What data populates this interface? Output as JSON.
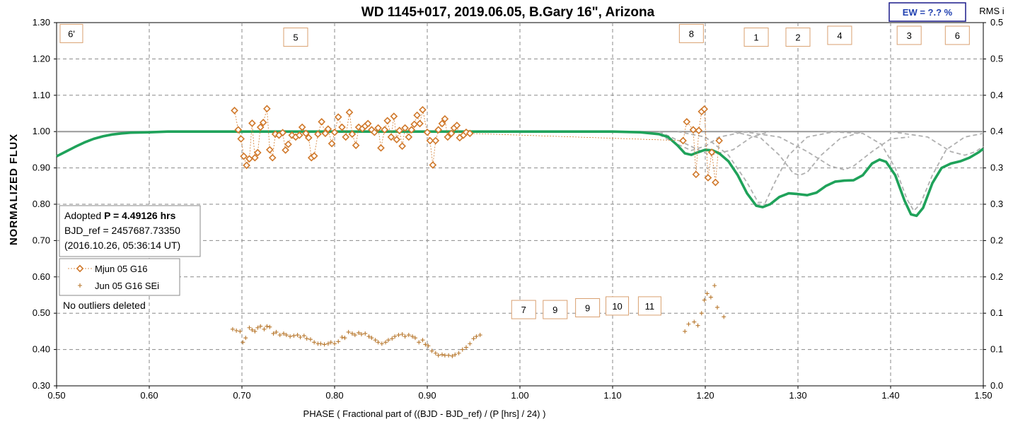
{
  "chart_data": {
    "type": "line",
    "title": "WD 1145+017, 2019.06.05, B.Gary 16\", Arizona",
    "xlabel": "PHASE ( Fractional part of ((BJD - BJD_ref) / (P [hrs] / 24) )",
    "ylabel": "NORMALIZED FLUX",
    "y2label": "RMS i",
    "xlim": [
      0.5,
      1.5
    ],
    "ylim": [
      0.3,
      1.3
    ],
    "y2lim": [
      0.0,
      0.5
    ],
    "x_ticks": [
      "0.50",
      "0.60",
      "0.70",
      "0.80",
      "0.90",
      "1.00",
      "1.10",
      "1.20",
      "1.30",
      "1.40",
      "1.50"
    ],
    "y_ticks": [
      "0.30",
      "0.40",
      "0.50",
      "0.60",
      "0.70",
      "0.80",
      "0.90",
      "1.00",
      "1.10",
      "1.20",
      "1.30"
    ],
    "y2_ticks": [
      "0.0",
      "0.1",
      "0.1",
      "0.2",
      "0.2",
      "0.3",
      "0.3",
      "0.4",
      "0.4",
      "0.5",
      "0.5"
    ],
    "grid": true,
    "ew_label": "EW =  ?.? %",
    "info": {
      "adopted_prefix": "Adopted ",
      "adopted_bold": "P = 4.49126 hrs",
      "bjd_ref": "BJD_ref = 2457687.73350",
      "date": "(2016.10.26, 05:36:14 UT)",
      "outliers": "No outliers deleted"
    },
    "legend": [
      {
        "name": "Mjun 05 G16",
        "color": "#d0782a",
        "marker": "diamond"
      },
      {
        "name": "Jun 05 G16 SEi",
        "color": "#b8782e",
        "marker": "plus"
      }
    ],
    "colors": {
      "model": "#1fa25a",
      "components": "#b0b0b0",
      "flux": "#d0782a",
      "rms": "#b8782e",
      "baseline": "#999999"
    },
    "dip_labels": [
      {
        "label": "6'",
        "x": 0.516,
        "y": 1.27
      },
      {
        "label": "5",
        "x": 0.758,
        "y": 1.26
      },
      {
        "label": "8",
        "x": 1.185,
        "y": 1.27
      },
      {
        "label": "1",
        "x": 1.255,
        "y": 1.26
      },
      {
        "label": "2",
        "x": 1.3,
        "y": 1.26
      },
      {
        "label": "4",
        "x": 1.345,
        "y": 1.265
      },
      {
        "label": "3",
        "x": 1.42,
        "y": 1.265
      },
      {
        "label": "6",
        "x": 1.472,
        "y": 1.265
      },
      {
        "label": "7",
        "x": 1.004,
        "y": 0.51
      },
      {
        "label": "9",
        "x": 1.038,
        "y": 0.51
      },
      {
        "label": "9",
        "x": 1.073,
        "y": 0.515
      },
      {
        "label": "10",
        "x": 1.105,
        "y": 0.52
      },
      {
        "label": "11",
        "x": 1.14,
        "y": 0.52
      }
    ],
    "model_curve": [
      [
        0.5,
        0.932
      ],
      [
        0.51,
        0.945
      ],
      [
        0.52,
        0.958
      ],
      [
        0.53,
        0.97
      ],
      [
        0.54,
        0.98
      ],
      [
        0.55,
        0.987
      ],
      [
        0.56,
        0.992
      ],
      [
        0.57,
        0.995
      ],
      [
        0.58,
        0.997
      ],
      [
        0.6,
        0.998
      ],
      [
        0.62,
        1.0
      ],
      [
        0.7,
        1.0
      ],
      [
        0.9,
        1.0
      ],
      [
        1.0,
        1.0
      ],
      [
        1.1,
        1.0
      ],
      [
        1.13,
        0.998
      ],
      [
        1.15,
        0.993
      ],
      [
        1.16,
        0.985
      ],
      [
        1.17,
        0.962
      ],
      [
        1.178,
        0.94
      ],
      [
        1.185,
        0.936
      ],
      [
        1.192,
        0.943
      ],
      [
        1.2,
        0.95
      ],
      [
        1.208,
        0.948
      ],
      [
        1.215,
        0.94
      ],
      [
        1.225,
        0.918
      ],
      [
        1.235,
        0.88
      ],
      [
        1.245,
        0.83
      ],
      [
        1.255,
        0.796
      ],
      [
        1.262,
        0.792
      ],
      [
        1.27,
        0.8
      ],
      [
        1.28,
        0.82
      ],
      [
        1.29,
        0.83
      ],
      [
        1.3,
        0.828
      ],
      [
        1.31,
        0.825
      ],
      [
        1.32,
        0.832
      ],
      [
        1.33,
        0.85
      ],
      [
        1.34,
        0.862
      ],
      [
        1.35,
        0.865
      ],
      [
        1.36,
        0.866
      ],
      [
        1.37,
        0.88
      ],
      [
        1.38,
        0.912
      ],
      [
        1.388,
        0.923
      ],
      [
        1.395,
        0.917
      ],
      [
        1.405,
        0.88
      ],
      [
        1.415,
        0.81
      ],
      [
        1.422,
        0.772
      ],
      [
        1.428,
        0.768
      ],
      [
        1.435,
        0.79
      ],
      [
        1.445,
        0.858
      ],
      [
        1.455,
        0.9
      ],
      [
        1.465,
        0.912
      ],
      [
        1.475,
        0.918
      ],
      [
        1.485,
        0.928
      ],
      [
        1.495,
        0.943
      ],
      [
        1.5,
        0.953
      ]
    ],
    "component_curves": [
      [
        [
          1.12,
          1.0
        ],
        [
          1.15,
          0.992
        ],
        [
          1.17,
          0.965
        ],
        [
          1.185,
          0.948
        ],
        [
          1.2,
          0.96
        ],
        [
          1.215,
          0.985
        ],
        [
          1.24,
          0.998
        ],
        [
          1.26,
          1.0
        ]
      ],
      [
        [
          1.17,
          1.0
        ],
        [
          1.2,
          0.985
        ],
        [
          1.225,
          0.935
        ],
        [
          1.245,
          0.86
        ],
        [
          1.257,
          0.805
        ],
        [
          1.265,
          0.805
        ],
        [
          1.275,
          0.86
        ],
        [
          1.29,
          0.935
        ],
        [
          1.31,
          0.985
        ],
        [
          1.34,
          1.0
        ]
      ],
      [
        [
          1.23,
          1.0
        ],
        [
          1.26,
          0.982
        ],
        [
          1.28,
          0.935
        ],
        [
          1.295,
          0.885
        ],
        [
          1.302,
          0.88
        ],
        [
          1.31,
          0.888
        ],
        [
          1.325,
          0.935
        ],
        [
          1.345,
          0.98
        ],
        [
          1.37,
          1.0
        ]
      ],
      [
        [
          1.24,
          1.0
        ],
        [
          1.28,
          0.985
        ],
        [
          1.31,
          0.945
        ],
        [
          1.335,
          0.905
        ],
        [
          1.35,
          0.895
        ],
        [
          1.36,
          0.905
        ],
        [
          1.38,
          0.945
        ],
        [
          1.4,
          0.98
        ],
        [
          1.42,
          0.985
        ]
      ],
      [
        [
          1.33,
          1.0
        ],
        [
          1.37,
          0.995
        ],
        [
          1.39,
          0.965
        ],
        [
          1.405,
          0.9
        ],
        [
          1.418,
          0.812
        ],
        [
          1.425,
          0.782
        ],
        [
          1.432,
          0.8
        ],
        [
          1.445,
          0.88
        ],
        [
          1.46,
          0.95
        ],
        [
          1.48,
          0.985
        ],
        [
          1.5,
          0.995
        ]
      ],
      [
        [
          1.4,
          1.0
        ],
        [
          1.44,
          0.985
        ],
        [
          1.465,
          0.945
        ],
        [
          1.48,
          0.935
        ],
        [
          1.492,
          0.945
        ],
        [
          1.5,
          0.96
        ]
      ],
      [
        [
          1.15,
          1.0
        ],
        [
          1.18,
          0.965
        ],
        [
          1.205,
          0.935
        ],
        [
          1.23,
          0.95
        ],
        [
          1.25,
          0.985
        ],
        [
          1.27,
          1.0
        ]
      ]
    ],
    "flux_points": [
      [
        0.692,
        1.058
      ],
      [
        0.696,
        1.005
      ],
      [
        0.699,
        0.98
      ],
      [
        0.702,
        0.932
      ],
      [
        0.705,
        0.907
      ],
      [
        0.708,
        0.925
      ],
      [
        0.711,
        1.023
      ],
      [
        0.714,
        0.928
      ],
      [
        0.717,
        0.942
      ],
      [
        0.72,
        1.012
      ],
      [
        0.723,
        1.025
      ],
      [
        0.727,
        1.063
      ],
      [
        0.73,
        0.95
      ],
      [
        0.733,
        0.928
      ],
      [
        0.736,
        0.993
      ],
      [
        0.74,
        0.99
      ],
      [
        0.744,
        0.997
      ],
      [
        0.747,
        0.949
      ],
      [
        0.75,
        0.965
      ],
      [
        0.754,
        0.99
      ],
      [
        0.758,
        0.985
      ],
      [
        0.762,
        0.99
      ],
      [
        0.765,
        1.012
      ],
      [
        0.769,
        0.995
      ],
      [
        0.772,
        0.983
      ],
      [
        0.775,
        0.928
      ],
      [
        0.778,
        0.933
      ],
      [
        0.782,
        0.993
      ],
      [
        0.786,
        1.027
      ],
      [
        0.79,
        0.995
      ],
      [
        0.793,
        1.007
      ],
      [
        0.797,
        0.967
      ],
      [
        0.8,
        0.998
      ],
      [
        0.804,
        1.04
      ],
      [
        0.808,
        1.012
      ],
      [
        0.812,
        0.985
      ],
      [
        0.816,
        1.053
      ],
      [
        0.819,
        0.993
      ],
      [
        0.823,
        0.962
      ],
      [
        0.826,
        1.012
      ],
      [
        0.83,
        1.008
      ],
      [
        0.833,
        1.015
      ],
      [
        0.836,
        1.022
      ],
      [
        0.84,
        1.005
      ],
      [
        0.843,
        0.998
      ],
      [
        0.847,
        1.01
      ],
      [
        0.85,
        0.955
      ],
      [
        0.854,
        1.005
      ],
      [
        0.857,
        1.03
      ],
      [
        0.861,
        0.985
      ],
      [
        0.864,
        1.042
      ],
      [
        0.867,
        0.978
      ],
      [
        0.87,
        1.003
      ],
      [
        0.873,
        0.96
      ],
      [
        0.876,
        1.01
      ],
      [
        0.88,
        0.985
      ],
      [
        0.883,
        1.005
      ],
      [
        0.886,
        1.02
      ],
      [
        0.889,
        1.045
      ],
      [
        0.892,
        1.022
      ],
      [
        0.895,
        1.06
      ],
      [
        0.9,
        0.998
      ],
      [
        0.903,
        0.975
      ],
      [
        0.906,
        0.908
      ],
      [
        0.909,
        0.975
      ],
      [
        0.912,
        1.005
      ],
      [
        0.916,
        1.022
      ],
      [
        0.919,
        1.035
      ],
      [
        0.922,
        0.985
      ],
      [
        0.926,
        0.995
      ],
      [
        0.929,
        1.01
      ],
      [
        0.932,
        1.017
      ],
      [
        0.935,
        0.983
      ],
      [
        0.939,
        0.99
      ],
      [
        0.942,
        0.998
      ],
      [
        0.946,
        0.995
      ],
      [
        1.176,
        0.975
      ],
      [
        1.18,
        1.027
      ],
      [
        1.187,
        1.005
      ],
      [
        1.19,
        0.882
      ],
      [
        1.193,
        1.003
      ],
      [
        1.196,
        1.055
      ],
      [
        1.199,
        1.062
      ],
      [
        1.203,
        0.873
      ],
      [
        1.207,
        0.943
      ],
      [
        1.211,
        0.86
      ],
      [
        1.215,
        0.975
      ]
    ],
    "rms_points": [
      [
        0.69,
        0.078
      ],
      [
        0.694,
        0.076
      ],
      [
        0.698,
        0.075
      ],
      [
        0.701,
        0.06
      ],
      [
        0.704,
        0.066
      ],
      [
        0.708,
        0.08
      ],
      [
        0.711,
        0.077
      ],
      [
        0.714,
        0.075
      ],
      [
        0.717,
        0.08
      ],
      [
        0.72,
        0.082
      ],
      [
        0.724,
        0.078
      ],
      [
        0.727,
        0.082
      ],
      [
        0.73,
        0.081
      ],
      [
        0.734,
        0.072
      ],
      [
        0.737,
        0.074
      ],
      [
        0.741,
        0.07
      ],
      [
        0.745,
        0.072
      ],
      [
        0.748,
        0.07
      ],
      [
        0.752,
        0.068
      ],
      [
        0.756,
        0.069
      ],
      [
        0.76,
        0.07
      ],
      [
        0.763,
        0.067
      ],
      [
        0.767,
        0.069
      ],
      [
        0.77,
        0.065
      ],
      [
        0.774,
        0.064
      ],
      [
        0.778,
        0.06
      ],
      [
        0.782,
        0.058
      ],
      [
        0.785,
        0.058
      ],
      [
        0.789,
        0.057
      ],
      [
        0.793,
        0.058
      ],
      [
        0.796,
        0.06
      ],
      [
        0.8,
        0.058
      ],
      [
        0.804,
        0.061
      ],
      [
        0.808,
        0.067
      ],
      [
        0.811,
        0.066
      ],
      [
        0.815,
        0.074
      ],
      [
        0.819,
        0.072
      ],
      [
        0.822,
        0.07
      ],
      [
        0.826,
        0.073
      ],
      [
        0.829,
        0.071
      ],
      [
        0.833,
        0.072
      ],
      [
        0.837,
        0.068
      ],
      [
        0.84,
        0.066
      ],
      [
        0.844,
        0.063
      ],
      [
        0.847,
        0.06
      ],
      [
        0.851,
        0.058
      ],
      [
        0.855,
        0.06
      ],
      [
        0.858,
        0.063
      ],
      [
        0.862,
        0.065
      ],
      [
        0.865,
        0.068
      ],
      [
        0.869,
        0.07
      ],
      [
        0.873,
        0.071
      ],
      [
        0.876,
        0.068
      ],
      [
        0.88,
        0.07
      ],
      [
        0.884,
        0.068
      ],
      [
        0.887,
        0.066
      ],
      [
        0.891,
        0.06
      ],
      [
        0.895,
        0.063
      ],
      [
        0.898,
        0.057
      ],
      [
        0.901,
        0.055
      ],
      [
        0.905,
        0.048
      ],
      [
        0.909,
        0.045
      ],
      [
        0.912,
        0.042
      ],
      [
        0.916,
        0.043
      ],
      [
        0.919,
        0.042
      ],
      [
        0.923,
        0.042
      ],
      [
        0.927,
        0.041
      ],
      [
        0.93,
        0.043
      ],
      [
        0.934,
        0.045
      ],
      [
        0.938,
        0.05
      ],
      [
        0.942,
        0.053
      ],
      [
        0.946,
        0.058
      ],
      [
        0.95,
        0.065
      ],
      [
        0.953,
        0.068
      ],
      [
        0.957,
        0.07
      ],
      [
        1.178,
        0.075
      ],
      [
        1.182,
        0.085
      ],
      [
        1.188,
        0.088
      ],
      [
        1.192,
        0.083
      ],
      [
        1.196,
        0.1
      ],
      [
        1.199,
        0.118
      ],
      [
        1.202,
        0.127
      ],
      [
        1.206,
        0.122
      ],
      [
        1.21,
        0.138
      ],
      [
        1.213,
        0.108
      ],
      [
        1.22,
        0.095
      ]
    ]
  }
}
